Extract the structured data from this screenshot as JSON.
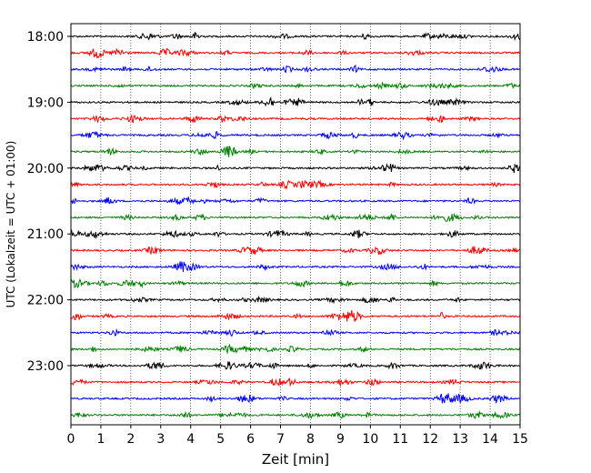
{
  "chart_data": {
    "type": "line",
    "title": "",
    "xlabel": "Zeit  [min]",
    "ylabel": "UTC (Lokalzeit = UTC + 01:00)",
    "xlim": [
      0,
      15
    ],
    "x_ticks": [
      "0",
      "1",
      "2",
      "3",
      "4",
      "5",
      "6",
      "7",
      "8",
      "9",
      "10",
      "11",
      "12",
      "13",
      "14",
      "15"
    ],
    "y_tick_labels": [
      "18:00",
      "19:00",
      "20:00",
      "21:00",
      "22:00",
      "23:00"
    ],
    "grid": {
      "x": true,
      "style": "dotted",
      "y": false
    },
    "trace_interval_minutes": 15,
    "trace_colors": [
      "#000000",
      "#ff0000",
      "#0000ff",
      "#008000"
    ],
    "traces": [
      {
        "start": "18:00"
      },
      {
        "start": "18:15"
      },
      {
        "start": "18:30"
      },
      {
        "start": "18:45"
      },
      {
        "start": "19:00"
      },
      {
        "start": "19:15"
      },
      {
        "start": "19:30"
      },
      {
        "start": "19:45"
      },
      {
        "start": "20:00"
      },
      {
        "start": "20:15"
      },
      {
        "start": "20:30"
      },
      {
        "start": "20:45"
      },
      {
        "start": "21:00"
      },
      {
        "start": "21:15"
      },
      {
        "start": "21:30"
      },
      {
        "start": "21:45"
      },
      {
        "start": "22:00"
      },
      {
        "start": "22:15"
      },
      {
        "start": "22:30"
      },
      {
        "start": "22:45"
      },
      {
        "start": "23:00"
      },
      {
        "start": "23:15"
      },
      {
        "start": "23:30"
      },
      {
        "start": "23:45"
      }
    ]
  }
}
